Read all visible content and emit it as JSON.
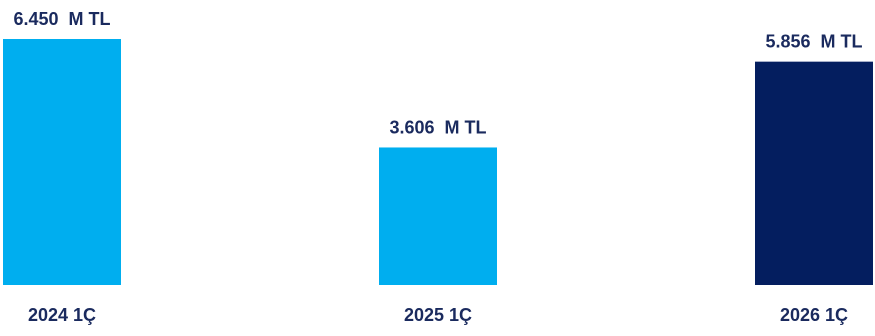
{
  "chart_data": {
    "type": "bar",
    "categories": [
      "2024 1Ç",
      "2025 1Ç",
      "2026 1Ç"
    ],
    "values": [
      6450,
      3606,
      5856
    ],
    "data_labels": [
      "6.450  M TL",
      "3.606  M TL",
      "5.856  M TL"
    ],
    "bar_colors": [
      "#00aeef",
      "#00aeef",
      "#041e5f"
    ],
    "label_color": "#1a2a5e",
    "ylim": [
      0,
      6450
    ],
    "grid": false,
    "legend": "none"
  }
}
